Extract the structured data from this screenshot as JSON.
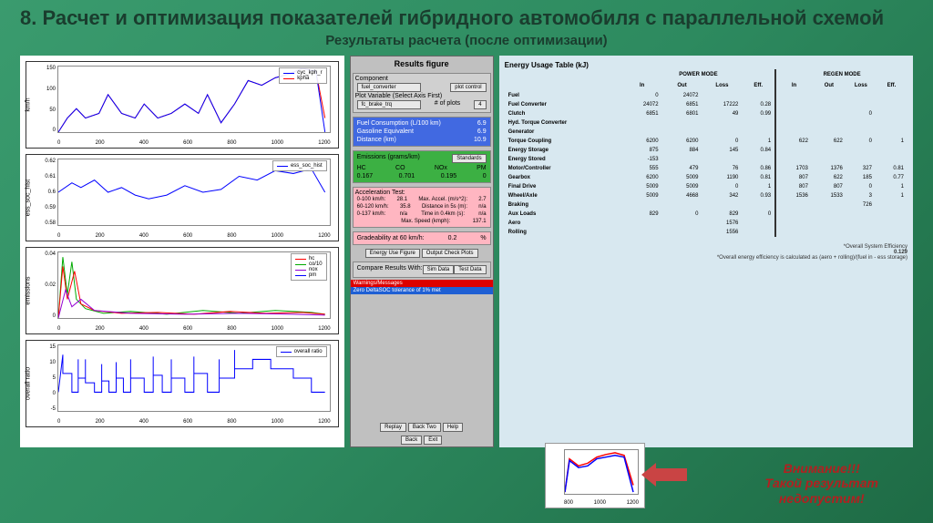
{
  "title": "8. Расчет и оптимизация показателей гибридного автомобиля с параллельной схемой",
  "subtitle": "Результаты расчета (после оптимизации)",
  "charts": {
    "xticks": [
      "0",
      "200",
      "400",
      "600",
      "800",
      "1000",
      "1200"
    ],
    "c1": {
      "ylabel": "km/h",
      "yticks": [
        "150",
        "100",
        "50",
        "0"
      ],
      "legend": [
        [
          "cyc_kph_r",
          "#0000ff"
        ],
        [
          "kpha",
          "#ff0000"
        ]
      ]
    },
    "c2": {
      "ylabel": "ess_soc_hist",
      "yticks": [
        "0.62",
        "0.61",
        "0.6",
        "0.59",
        "0.58"
      ],
      "legend": [
        [
          "ess_soc_hist",
          "#0000ff"
        ]
      ]
    },
    "c3": {
      "ylabel": "emissions",
      "yticks": [
        "0.04",
        "0.02",
        "0"
      ],
      "legend": [
        [
          "hc",
          "#ff0000"
        ],
        [
          "co/10",
          "#00aa00"
        ],
        [
          "nox",
          "#9400d3"
        ],
        [
          "pm",
          "#0000ff"
        ]
      ]
    },
    "c4": {
      "ylabel": "overall ratio",
      "yticks": [
        "15",
        "10",
        "5",
        "0",
        "-5"
      ],
      "legend": [
        [
          "overall ratio",
          "#0000ff"
        ]
      ]
    }
  },
  "results": {
    "title": "Results figure",
    "component_label": "Component",
    "component_value": "fuel_converter",
    "plot_control": "plot control",
    "plot_var_label": "Plot Variable (Select Axis First)",
    "plot_var_value": "fc_brake_trq",
    "plots_label": "# of plots",
    "plots_value": "4",
    "fuel": {
      "r1": [
        "Fuel Consumption (L/100 km)",
        "6.9"
      ],
      "r2": [
        "Gasoline Equivalent",
        "6.9"
      ],
      "r3": [
        "Distance (km)",
        "10.9"
      ]
    },
    "emissions_title": "Emissions (grams/km)",
    "standards_btn": "Standards",
    "em_head": [
      "HC",
      "CO",
      "NOx",
      "PM"
    ],
    "em_vals": [
      "0.167",
      "0.701",
      "0.195",
      "0"
    ],
    "accel_title": "Acceleration Test:",
    "accel": [
      [
        "0-100 km/h:",
        "28.1",
        "Max. Accel. (m/s^2):",
        "2.7"
      ],
      [
        "60-120 km/h:",
        "35.8",
        "Distance in 5s (m):",
        "n/a"
      ],
      [
        "0-137 km/h:",
        "n/a",
        "Time in 0.4km (s):",
        "n/a"
      ],
      [
        "",
        "",
        "Max. Speed (kmph):",
        "137.1"
      ]
    ],
    "grade": [
      "Gradeability at 60 km/h:",
      "0.2",
      "%"
    ],
    "btns1": [
      "Energy Use Figure",
      "Output Check Plots"
    ],
    "compare": "Compare Results With:",
    "btns2": [
      "Sim Data",
      "Test Data"
    ],
    "redbar": "Warnings/Messages",
    "bluebar": "Zero DeltaSOC tolerance of 1% met",
    "btns3": [
      "Replay",
      "Back Two",
      "Help"
    ],
    "btns4": [
      "Back",
      "Exit"
    ]
  },
  "energy": {
    "title": "Energy Usage Table (kJ)",
    "power_mode": "POWER MODE",
    "regen_mode": "REGEN MODE",
    "cols": [
      "In",
      "Out",
      "Loss",
      "Eff.",
      "In",
      "Out",
      "Loss",
      "Eff."
    ],
    "rows": [
      [
        "Fuel",
        "0",
        "24072",
        "",
        "",
        "",
        "",
        "",
        ""
      ],
      [
        "Fuel Converter",
        "24072",
        "6851",
        "17222",
        "0.28",
        "",
        "",
        "",
        ""
      ],
      [
        "Clutch",
        "6851",
        "6801",
        "49",
        "0.99",
        "",
        "",
        "0",
        ""
      ],
      [
        "Hyd. Torque Converter",
        "",
        "",
        "",
        "",
        "",
        "",
        "",
        ""
      ],
      [
        "Generator",
        "",
        "",
        "",
        "",
        "",
        "",
        "",
        ""
      ],
      [
        "Torque Coupling",
        "6200",
        "6200",
        "0",
        "1",
        "622",
        "622",
        "0",
        "1"
      ],
      [
        "Energy Storage",
        "875",
        "884",
        "145",
        "0.84",
        "",
        "",
        "",
        ""
      ],
      [
        "Energy Stored",
        "-153",
        "",
        "",
        "",
        "",
        "",
        "",
        ""
      ],
      [
        "Motor/Controller",
        "555",
        "479",
        "76",
        "0.86",
        "1703",
        "1376",
        "327",
        "0.81"
      ],
      [
        "Gearbox",
        "6200",
        "5009",
        "1190",
        "0.81",
        "807",
        "622",
        "185",
        "0.77"
      ],
      [
        "Final Drive",
        "5009",
        "5009",
        "0",
        "1",
        "807",
        "807",
        "0",
        "1"
      ],
      [
        "Wheel/Axle",
        "5009",
        "4668",
        "342",
        "0.93",
        "1536",
        "1533",
        "3",
        "1"
      ],
      [
        "Braking",
        "",
        "",
        "",
        "",
        "",
        "",
        "726",
        ""
      ],
      [
        "Aux Loads",
        "829",
        "0",
        "829",
        "0",
        "",
        "",
        "",
        ""
      ],
      [
        "Aero",
        "",
        "",
        "1576",
        "",
        "",
        "",
        "",
        ""
      ],
      [
        "Rolling",
        "",
        "",
        "1556",
        "",
        "",
        "",
        "",
        ""
      ]
    ],
    "footer1": "*Overall System Efficiency",
    "footer_val": "0.129",
    "footer2": "*Overall energy efficiency is calculated as (aero + rolling)/(fuel in - ess storage)"
  },
  "warning": {
    "l1": "Внимание!!!",
    "l2": "Такой результат",
    "l3": "недопустим!"
  },
  "mini_xticks": [
    "800",
    "1000",
    "1200"
  ]
}
